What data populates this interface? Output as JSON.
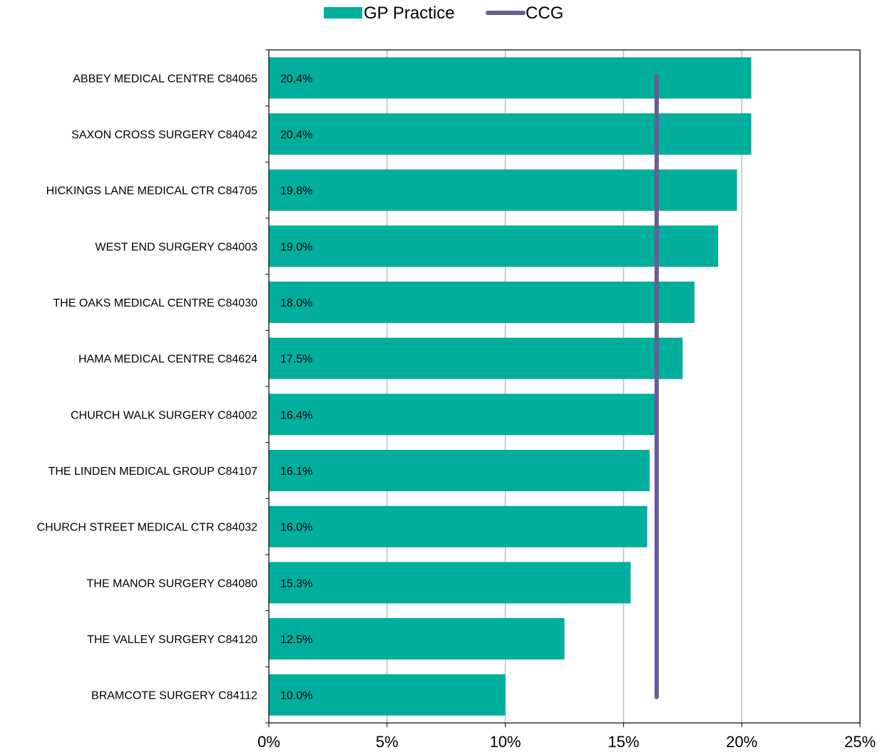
{
  "chart_data": {
    "type": "bar",
    "orientation": "horizontal",
    "categories": [
      "ABBEY MEDICAL CENTRE C84065",
      "SAXON CROSS SURGERY C84042",
      "HICKINGS LANE MEDICAL CTR C84705",
      "WEST END SURGERY C84003",
      "THE OAKS MEDICAL CENTRE C84030",
      "HAMA MEDICAL CENTRE C84624",
      "CHURCH WALK SURGERY C84002",
      "THE LINDEN MEDICAL GROUP C84107",
      "CHURCH STREET MEDICAL CTR C84032",
      "THE MANOR SURGERY C84080",
      "THE VALLEY SURGERY C84120",
      "BRAMCOTE SURGERY C84112"
    ],
    "series": [
      {
        "name": "GP Practice",
        "type": "bar",
        "color": "#00AE9E",
        "values": [
          20.4,
          20.4,
          19.8,
          19.0,
          18.0,
          17.5,
          16.4,
          16.1,
          16.0,
          15.3,
          12.5,
          10.0
        ],
        "labels": [
          "20.4%",
          "20.4%",
          "19.8%",
          "19.0%",
          "18.0%",
          "17.5%",
          "16.4%",
          "16.1%",
          "16.0%",
          "15.3%",
          "12.5%",
          "10.0%"
        ]
      },
      {
        "name": "CCG",
        "type": "line",
        "color": "#6B5B95",
        "value": 16.4
      }
    ],
    "xlim": [
      0,
      25
    ],
    "xticks": [
      0,
      5,
      10,
      15,
      20,
      25
    ],
    "xtick_labels": [
      "0%",
      "5%",
      "10%",
      "15%",
      "20%",
      "25%"
    ],
    "grid": true,
    "legend": "top-center"
  }
}
